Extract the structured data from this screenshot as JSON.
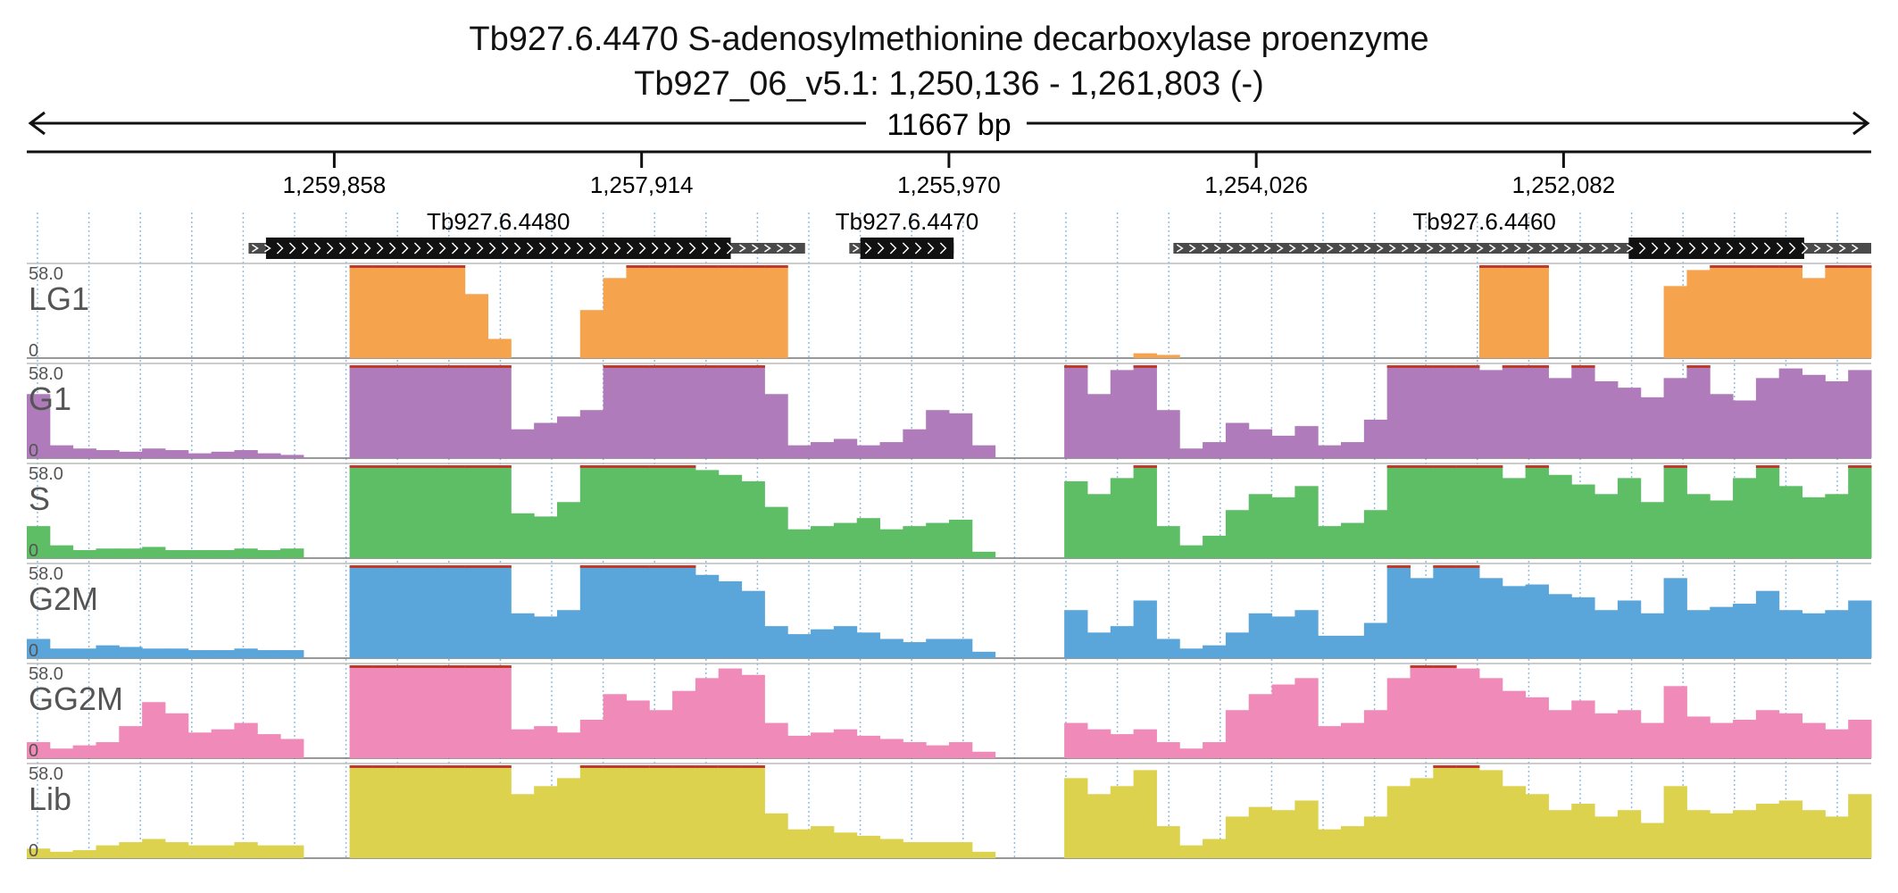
{
  "header": {
    "title": "Tb927.6.4470  S-adenosylmethionine decarboxylase proenzyme",
    "subtitle": "Tb927_06_v5.1: 1,250,136 - 1,261,803 (-)"
  },
  "chart_data": {
    "type": "area",
    "title": "Tb927.6.4470  S-adenosylmethionine decarboxylase proenzyme",
    "locus": {
      "chromosome": "Tb927_06_v5.1",
      "start": 1250136,
      "end": 1261803,
      "strand": "-",
      "span_label": "11667 bp"
    },
    "ruler_ticks": [
      {
        "pos": 1259858,
        "label": "1,259,858"
      },
      {
        "pos": 1257914,
        "label": "1,257,914"
      },
      {
        "pos": 1255970,
        "label": "1,255,970"
      },
      {
        "pos": 1254026,
        "label": "1,254,026"
      },
      {
        "pos": 1252082,
        "label": "1,252,082"
      }
    ],
    "genes": [
      {
        "name": "Tb927.6.4480",
        "utr_start": 1260400,
        "utr_end": 1256880,
        "cds_start": 1260290,
        "cds_end": 1257350
      },
      {
        "name": "Tb927.6.4470",
        "utr_start": 1256600,
        "utr_end": 1255940,
        "cds_start": 1256530,
        "cds_end": 1255940
      },
      {
        "name": "Tb927.6.4460",
        "utr_start": 1254550,
        "utr_end": 1250136,
        "cds_start": 1251670,
        "cds_end": 1250560
      }
    ],
    "ylim": [
      0,
      58.0
    ],
    "y_max_label": "58.0",
    "y_min_label": "0",
    "bins": 80,
    "tracks": [
      {
        "name": "LG1",
        "color": "#f5a34c",
        "values": [
          0,
          0,
          0,
          0,
          0,
          0,
          0,
          0,
          0,
          0,
          0,
          0,
          0,
          0,
          58,
          58,
          58,
          58,
          58,
          40,
          12,
          0,
          0,
          0,
          30,
          50,
          58,
          58,
          58,
          58,
          58,
          58,
          58,
          0,
          0,
          0,
          0,
          0,
          0,
          0,
          0,
          0,
          0,
          0,
          0,
          0,
          0,
          0,
          3,
          2,
          0,
          0,
          0,
          0,
          0,
          0,
          0,
          0,
          0,
          0,
          0,
          0,
          0,
          58,
          58,
          58,
          0,
          0,
          0,
          0,
          0,
          45,
          55,
          58,
          58,
          58,
          58,
          50,
          58,
          58
        ]
      },
      {
        "name": "G1",
        "color": "#b07bbb",
        "values": [
          40,
          8,
          6,
          5,
          4,
          6,
          5,
          3,
          4,
          5,
          3,
          2,
          0,
          0,
          58,
          58,
          58,
          58,
          58,
          58,
          58,
          18,
          22,
          26,
          30,
          58,
          58,
          58,
          58,
          58,
          58,
          58,
          40,
          8,
          10,
          12,
          8,
          10,
          18,
          30,
          28,
          8,
          0,
          0,
          0,
          58,
          40,
          55,
          58,
          30,
          6,
          10,
          22,
          18,
          14,
          20,
          8,
          10,
          24,
          58,
          58,
          58,
          58,
          55,
          58,
          58,
          50,
          58,
          48,
          44,
          38,
          50,
          58,
          40,
          36,
          50,
          56,
          52,
          48,
          55
        ]
      },
      {
        "name": "S",
        "color": "#5ebe65",
        "values": [
          20,
          8,
          5,
          6,
          6,
          7,
          5,
          5,
          5,
          6,
          5,
          6,
          0,
          0,
          58,
          58,
          58,
          58,
          58,
          58,
          58,
          28,
          26,
          35,
          58,
          58,
          58,
          58,
          58,
          55,
          52,
          48,
          32,
          18,
          20,
          22,
          25,
          18,
          20,
          22,
          24,
          4,
          0,
          0,
          0,
          48,
          40,
          50,
          58,
          20,
          8,
          14,
          30,
          40,
          38,
          45,
          20,
          22,
          30,
          58,
          58,
          58,
          58,
          58,
          50,
          58,
          52,
          46,
          40,
          50,
          35,
          58,
          40,
          36,
          50,
          58,
          45,
          38,
          40,
          58
        ]
      },
      {
        "name": "G2M",
        "color": "#5aa6da",
        "values": [
          12,
          6,
          6,
          8,
          7,
          6,
          6,
          5,
          5,
          6,
          5,
          5,
          0,
          0,
          58,
          58,
          58,
          58,
          58,
          58,
          58,
          28,
          26,
          30,
          58,
          58,
          58,
          58,
          58,
          52,
          48,
          42,
          20,
          15,
          18,
          20,
          16,
          12,
          10,
          12,
          12,
          4,
          0,
          0,
          0,
          30,
          16,
          20,
          36,
          12,
          6,
          8,
          16,
          28,
          26,
          30,
          14,
          14,
          22,
          58,
          50,
          58,
          58,
          50,
          45,
          46,
          40,
          38,
          30,
          36,
          28,
          50,
          30,
          32,
          34,
          42,
          30,
          28,
          30,
          36
        ]
      },
      {
        "name": "GG2M",
        "color": "#f08ab9",
        "values": [
          10,
          6,
          8,
          10,
          20,
          35,
          28,
          16,
          18,
          22,
          15,
          12,
          0,
          0,
          58,
          58,
          58,
          58,
          58,
          58,
          58,
          18,
          20,
          16,
          24,
          40,
          36,
          30,
          42,
          50,
          56,
          52,
          22,
          14,
          16,
          18,
          14,
          12,
          10,
          8,
          10,
          4,
          0,
          0,
          0,
          22,
          18,
          15,
          18,
          10,
          6,
          10,
          30,
          40,
          46,
          50,
          20,
          22,
          30,
          50,
          58,
          58,
          56,
          50,
          42,
          38,
          30,
          36,
          28,
          30,
          22,
          45,
          26,
          22,
          24,
          30,
          28,
          22,
          18,
          24
        ]
      },
      {
        "name": "Lib",
        "color": "#dcd24e",
        "values": [
          6,
          4,
          5,
          8,
          10,
          12,
          10,
          8,
          8,
          10,
          8,
          8,
          0,
          0,
          58,
          58,
          58,
          58,
          58,
          58,
          58,
          40,
          45,
          50,
          58,
          58,
          58,
          58,
          58,
          58,
          58,
          58,
          28,
          18,
          20,
          16,
          14,
          12,
          10,
          10,
          10,
          4,
          0,
          0,
          0,
          50,
          40,
          45,
          55,
          20,
          8,
          12,
          26,
          32,
          30,
          36,
          18,
          20,
          26,
          45,
          50,
          58,
          58,
          55,
          45,
          40,
          30,
          34,
          26,
          30,
          22,
          45,
          30,
          28,
          30,
          34,
          36,
          30,
          26,
          40
        ]
      }
    ]
  }
}
